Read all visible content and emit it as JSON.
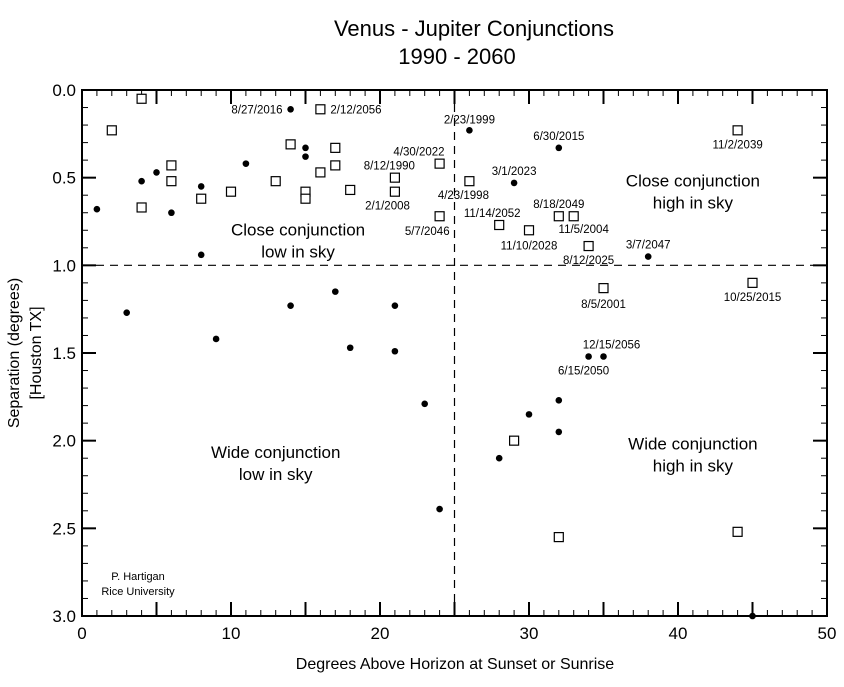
{
  "chart_data": {
    "type": "scatter",
    "title": [
      "Venus - Jupiter Conjunctions",
      "1990 - 2060"
    ],
    "xlabel": "Degrees Above Horizon at Sunset or Sunrise",
    "ylabel": [
      "Separation (degrees)",
      "[Houston TX]"
    ],
    "xlim": [
      0,
      50
    ],
    "ylim": [
      0.0,
      3.0
    ],
    "y_inverted": true,
    "grid": false,
    "x_ticks": [
      "0",
      "10",
      "20",
      "30",
      "40",
      "50"
    ],
    "y_ticks": [
      "0.0",
      "0.5",
      "1.0",
      "1.5",
      "2.0",
      "2.5",
      "3.0"
    ],
    "reference_lines": {
      "x": 25,
      "y": 1.0,
      "style": "dashed"
    },
    "quadrant_labels": [
      {
        "lines": [
          "Close conjunction",
          "low in sky"
        ],
        "x": 14.5,
        "y": 0.83
      },
      {
        "lines": [
          "Close conjunction",
          "high in sky"
        ],
        "x": 41,
        "y": 0.55
      },
      {
        "lines": [
          "Wide conjunction",
          "low in sky"
        ],
        "x": 13,
        "y": 2.1
      },
      {
        "lines": [
          "Wide conjunction",
          "high in sky"
        ],
        "x": 41,
        "y": 2.05
      }
    ],
    "credit": [
      "P. Hartigan",
      "Rice University"
    ],
    "marker_types": {
      "circle": "filled circle",
      "square": "open square"
    },
    "points": [
      {
        "x": 1,
        "y": 0.68,
        "m": "circle"
      },
      {
        "x": 2,
        "y": 0.23,
        "m": "square"
      },
      {
        "x": 3,
        "y": 1.27,
        "m": "circle"
      },
      {
        "x": 4,
        "y": 0.05,
        "m": "square"
      },
      {
        "x": 4,
        "y": 0.52,
        "m": "circle"
      },
      {
        "x": 4,
        "y": 0.67,
        "m": "square"
      },
      {
        "x": 5,
        "y": 0.47,
        "m": "circle"
      },
      {
        "x": 6,
        "y": 0.43,
        "m": "square"
      },
      {
        "x": 6,
        "y": 0.52,
        "m": "square"
      },
      {
        "x": 6,
        "y": 0.7,
        "m": "circle"
      },
      {
        "x": 8,
        "y": 0.55,
        "m": "circle"
      },
      {
        "x": 8,
        "y": 0.62,
        "m": "square"
      },
      {
        "x": 8,
        "y": 0.94,
        "m": "circle"
      },
      {
        "x": 9,
        "y": 1.42,
        "m": "circle"
      },
      {
        "x": 10,
        "y": 0.58,
        "m": "square"
      },
      {
        "x": 11,
        "y": 0.42,
        "m": "circle"
      },
      {
        "x": 13,
        "y": 0.52,
        "m": "square"
      },
      {
        "x": 14,
        "y": 0.11,
        "m": "circle",
        "label": "8/27/2016"
      },
      {
        "x": 14,
        "y": 0.31,
        "m": "square"
      },
      {
        "x": 14,
        "y": 1.23,
        "m": "circle"
      },
      {
        "x": 15,
        "y": 0.33,
        "m": "circle"
      },
      {
        "x": 15,
        "y": 0.38,
        "m": "circle"
      },
      {
        "x": 15,
        "y": 0.58,
        "m": "square"
      },
      {
        "x": 15,
        "y": 0.62,
        "m": "square"
      },
      {
        "x": 16,
        "y": 0.11,
        "m": "square",
        "label": "2/12/2056"
      },
      {
        "x": 16,
        "y": 0.47,
        "m": "square"
      },
      {
        "x": 17,
        "y": 0.33,
        "m": "square"
      },
      {
        "x": 17,
        "y": 0.43,
        "m": "square"
      },
      {
        "x": 17,
        "y": 1.15,
        "m": "circle"
      },
      {
        "x": 18,
        "y": 0.57,
        "m": "square"
      },
      {
        "x": 18,
        "y": 1.47,
        "m": "circle"
      },
      {
        "x": 21,
        "y": 0.5,
        "m": "square",
        "label": "8/12/1990"
      },
      {
        "x": 21,
        "y": 0.58,
        "m": "square",
        "label": "2/1/2008"
      },
      {
        "x": 21,
        "y": 1.23,
        "m": "circle"
      },
      {
        "x": 21,
        "y": 1.49,
        "m": "circle"
      },
      {
        "x": 23,
        "y": 1.79,
        "m": "circle"
      },
      {
        "x": 24,
        "y": 0.42,
        "m": "square",
        "label": "4/30/2022"
      },
      {
        "x": 24,
        "y": 0.72,
        "m": "square",
        "label": "5/7/2046"
      },
      {
        "x": 24,
        "y": 2.39,
        "m": "circle"
      },
      {
        "x": 26,
        "y": 0.23,
        "m": "circle",
        "label": "2/23/1999"
      },
      {
        "x": 26,
        "y": 0.52,
        "m": "square",
        "label": "4/23/1998"
      },
      {
        "x": 28,
        "y": 0.77,
        "m": "square",
        "label": "11/14/2052"
      },
      {
        "x": 28,
        "y": 2.1,
        "m": "circle"
      },
      {
        "x": 29,
        "y": 0.53,
        "m": "circle",
        "label": "3/1/2023"
      },
      {
        "x": 29,
        "y": 2.0,
        "m": "square"
      },
      {
        "x": 30,
        "y": 0.8,
        "m": "square",
        "label": "11/10/2028"
      },
      {
        "x": 30,
        "y": 1.85,
        "m": "circle"
      },
      {
        "x": 32,
        "y": 0.33,
        "m": "circle",
        "label": "6/30/2015"
      },
      {
        "x": 32,
        "y": 0.72,
        "m": "square",
        "label": "8/18/2049"
      },
      {
        "x": 32,
        "y": 1.77,
        "m": "circle"
      },
      {
        "x": 32,
        "y": 1.95,
        "m": "circle"
      },
      {
        "x": 32,
        "y": 2.55,
        "m": "square"
      },
      {
        "x": 33,
        "y": 0.72,
        "m": "square",
        "label": "11/5/2004"
      },
      {
        "x": 34,
        "y": 0.89,
        "m": "square",
        "label": "8/12/2025"
      },
      {
        "x": 34,
        "y": 1.52,
        "m": "circle",
        "label": "6/15/2050"
      },
      {
        "x": 35,
        "y": 1.13,
        "m": "square",
        "label": "8/5/2001"
      },
      {
        "x": 35,
        "y": 1.52,
        "m": "circle",
        "label": "12/15/2056"
      },
      {
        "x": 38,
        "y": 0.95,
        "m": "circle",
        "label": "3/7/2047"
      },
      {
        "x": 44,
        "y": 0.23,
        "m": "square",
        "label": "11/2/2039"
      },
      {
        "x": 44,
        "y": 2.52,
        "m": "square"
      },
      {
        "x": 45,
        "y": 1.1,
        "m": "square",
        "label": "10/25/2015"
      },
      {
        "x": 45,
        "y": 3.0,
        "m": "circle"
      }
    ]
  }
}
